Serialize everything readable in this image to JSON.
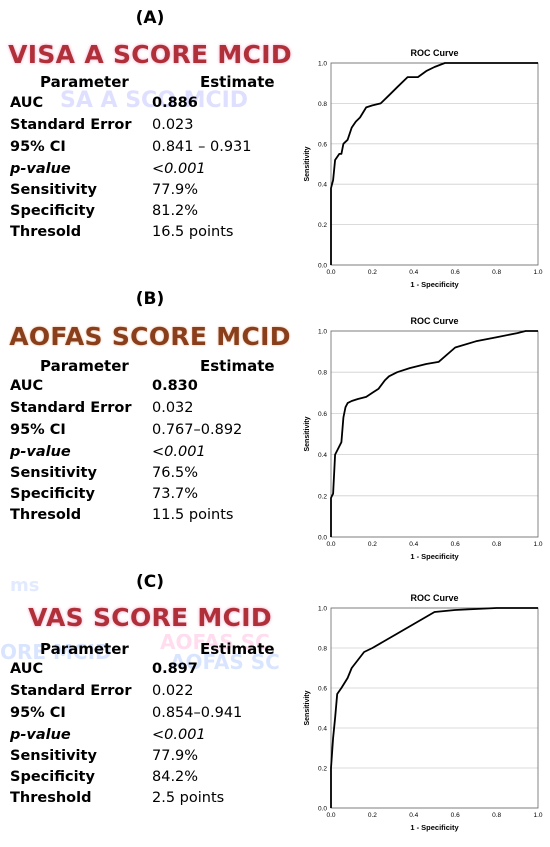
{
  "panels": [
    {
      "label": "(A)",
      "title": "VISA A SCORE MCID",
      "header": {
        "parameter": "Parameter",
        "estimate": "Estimate"
      },
      "rows": [
        {
          "label": "AUC",
          "value": "0.886"
        },
        {
          "label": "Standard Error",
          "value": "0.023"
        },
        {
          "label": "95% CI",
          "value": "0.841 – 0.931"
        },
        {
          "label": "p-value",
          "value": "<0.001"
        },
        {
          "label": "Sensitivity",
          "value": "77.9%"
        },
        {
          "label": "Specificity",
          "value": "81.2%"
        },
        {
          "label": "Thresold",
          "value": "16.5 points"
        }
      ]
    },
    {
      "label": "(B)",
      "title": "AOFAS SCORE MCID",
      "header": {
        "parameter": "Parameter",
        "estimate": "Estimate"
      },
      "rows": [
        {
          "label": "AUC",
          "value": "0.830"
        },
        {
          "label": "Standard Error",
          "value": "0.032"
        },
        {
          "label": "95% CI",
          "value": "0.767–0.892"
        },
        {
          "label": "p-value",
          "value": "<0.001"
        },
        {
          "label": "Sensitivity",
          "value": "76.5%"
        },
        {
          "label": "Specificity",
          "value": "73.7%"
        },
        {
          "label": "Thresold",
          "value": "11.5 points"
        }
      ]
    },
    {
      "label": "(C)",
      "title": "VAS SCORE MCID",
      "header": {
        "parameter": "Parameter",
        "estimate": "Estimate"
      },
      "rows": [
        {
          "label": "AUC",
          "value": "0.897"
        },
        {
          "label": "Standard Error",
          "value": "0.022"
        },
        {
          "label": "95% CI",
          "value": "0.854–0.941"
        },
        {
          "label": "p-value",
          "value": "<0.001"
        },
        {
          "label": "Sensitivity",
          "value": "77.9%"
        },
        {
          "label": "Specificity",
          "value": "84.2%"
        },
        {
          "label": "Threshold",
          "value": "2.5 points"
        }
      ]
    }
  ],
  "chart_data": [
    {
      "type": "line",
      "title": "ROC Curve",
      "xlabel": "1 - Specificity",
      "ylabel": "Sensitivity",
      "xlim": [
        0,
        1
      ],
      "ylim": [
        0,
        1
      ],
      "ticks": [
        "0.0",
        "0.2",
        "0.4",
        "0.6",
        "0.8",
        "1.0"
      ],
      "grid": "horizontal",
      "x": [
        0,
        0,
        0.01,
        0.02,
        0.04,
        0.05,
        0.06,
        0.08,
        0.1,
        0.12,
        0.14,
        0.17,
        0.2,
        0.24,
        0.28,
        0.32,
        0.37,
        0.42,
        0.46,
        0.5,
        0.55,
        0.6,
        0.8,
        1.0
      ],
      "y": [
        0,
        0.38,
        0.42,
        0.52,
        0.55,
        0.55,
        0.6,
        0.62,
        0.68,
        0.71,
        0.73,
        0.78,
        0.79,
        0.8,
        0.84,
        0.88,
        0.93,
        0.93,
        0.96,
        0.98,
        1.0,
        1.0,
        1.0,
        1.0
      ]
    },
    {
      "type": "line",
      "title": "ROC Curve",
      "xlabel": "1 - Specificity",
      "ylabel": "Sensitivity",
      "xlim": [
        0,
        1
      ],
      "ylim": [
        0,
        1
      ],
      "ticks": [
        "0.0",
        "0.2",
        "0.4",
        "0.6",
        "0.8",
        "1.0"
      ],
      "grid": "horizontal",
      "x": [
        0,
        0,
        0.01,
        0.02,
        0.03,
        0.05,
        0.06,
        0.07,
        0.08,
        0.1,
        0.13,
        0.17,
        0.2,
        0.23,
        0.26,
        0.28,
        0.32,
        0.38,
        0.46,
        0.52,
        0.6,
        0.7,
        0.8,
        0.9,
        0.94,
        1.0
      ],
      "y": [
        0,
        0.19,
        0.21,
        0.4,
        0.42,
        0.46,
        0.58,
        0.63,
        0.65,
        0.66,
        0.67,
        0.68,
        0.7,
        0.72,
        0.76,
        0.78,
        0.8,
        0.82,
        0.84,
        0.85,
        0.92,
        0.95,
        0.97,
        0.99,
        1.0,
        1.0
      ]
    },
    {
      "type": "line",
      "title": "ROC Curve",
      "xlabel": "1 - Specificity",
      "ylabel": "Sensitivity",
      "xlim": [
        0,
        1
      ],
      "ylim": [
        0,
        1
      ],
      "ticks": [
        "0.0",
        "0.2",
        "0.4",
        "0.6",
        "0.8",
        "1.0"
      ],
      "grid": "horizontal",
      "x": [
        0,
        0,
        0.01,
        0.02,
        0.03,
        0.05,
        0.08,
        0.1,
        0.16,
        0.2,
        0.3,
        0.4,
        0.5,
        0.6,
        0.8,
        1.0
      ],
      "y": [
        0,
        0.2,
        0.35,
        0.45,
        0.57,
        0.6,
        0.65,
        0.7,
        0.78,
        0.8,
        0.86,
        0.92,
        0.98,
        0.99,
        1.0,
        1.0
      ]
    }
  ]
}
